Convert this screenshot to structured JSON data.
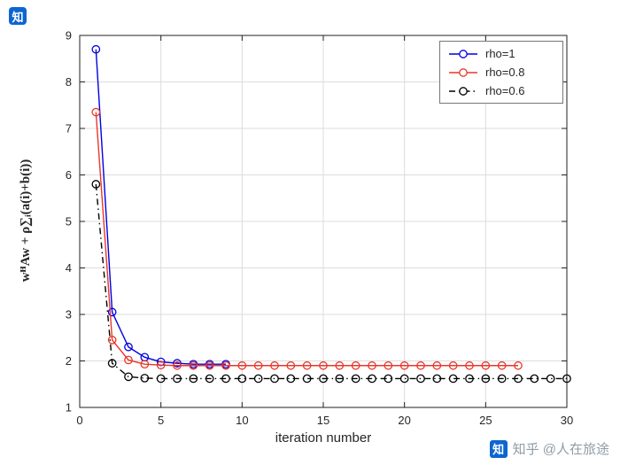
{
  "logo": {
    "text": "知",
    "color": "#0b66d1"
  },
  "watermark": {
    "logo_text": "知",
    "logo_color": "#0b66d1",
    "text": "知乎 @人在旅途",
    "color": "#8f9ca6"
  },
  "chart_data": {
    "type": "line",
    "title": "",
    "xlabel": "iteration number",
    "ylabel": "wᴴAw + ρ∑ᵢ(a(i)+b(i))",
    "xlim": [
      0,
      30
    ],
    "ylim": [
      1,
      9
    ],
    "xticks": [
      0,
      5,
      10,
      15,
      20,
      25,
      30
    ],
    "yticks": [
      1,
      2,
      3,
      4,
      5,
      6,
      7,
      8,
      9
    ],
    "grid": true,
    "legend_position": "top-right",
    "grid_color": "#dcdcdc",
    "axis_color": "#222222",
    "series": [
      {
        "name": "rho=1",
        "color": "#0000e0",
        "linestyle": "solid",
        "marker": "circle",
        "x": [
          1,
          2,
          3,
          4,
          5,
          6,
          7,
          8,
          9
        ],
        "y": [
          8.7,
          3.05,
          2.3,
          2.08,
          1.98,
          1.95,
          1.93,
          1.93,
          1.93
        ]
      },
      {
        "name": "rho=0.8",
        "color": "#e8382a",
        "linestyle": "solid",
        "marker": "circle",
        "x": [
          1,
          2,
          3,
          4,
          5,
          6,
          7,
          8,
          9,
          10,
          11,
          12,
          13,
          14,
          15,
          16,
          17,
          18,
          19,
          20,
          21,
          22,
          23,
          24,
          25,
          26,
          27
        ],
        "y": [
          7.35,
          2.45,
          2.02,
          1.93,
          1.91,
          1.9,
          1.9,
          1.9,
          1.9,
          1.9,
          1.9,
          1.9,
          1.9,
          1.9,
          1.9,
          1.9,
          1.9,
          1.9,
          1.9,
          1.9,
          1.9,
          1.9,
          1.9,
          1.9,
          1.9,
          1.9,
          1.9
        ]
      },
      {
        "name": "rho=0.6",
        "color": "#000000",
        "linestyle": "dashdot",
        "marker": "circle",
        "x": [
          1,
          2,
          3,
          4,
          5,
          6,
          7,
          8,
          9,
          10,
          11,
          12,
          13,
          14,
          15,
          16,
          17,
          18,
          19,
          20,
          21,
          22,
          23,
          24,
          25,
          26,
          27,
          28,
          29,
          30
        ],
        "y": [
          5.8,
          1.95,
          1.66,
          1.63,
          1.62,
          1.62,
          1.62,
          1.62,
          1.62,
          1.62,
          1.62,
          1.62,
          1.62,
          1.62,
          1.62,
          1.62,
          1.62,
          1.62,
          1.62,
          1.62,
          1.62,
          1.62,
          1.62,
          1.62,
          1.62,
          1.62,
          1.62,
          1.62,
          1.62,
          1.62
        ]
      }
    ]
  }
}
